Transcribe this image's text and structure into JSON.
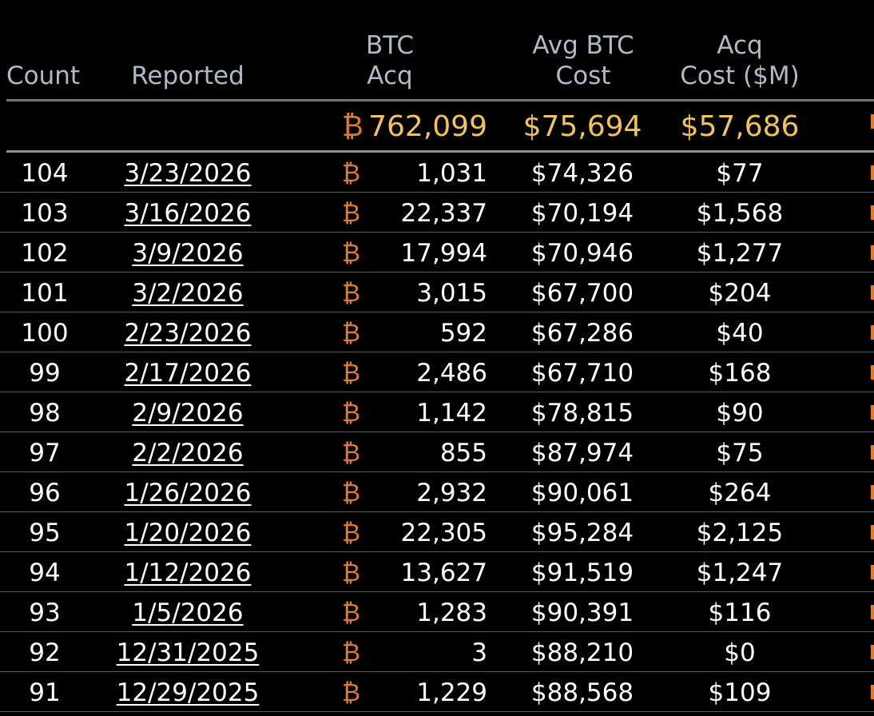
{
  "header": {
    "count": "Count",
    "reported": "Reported",
    "btc_acq_line1": "BTC",
    "btc_acq_line2": "Acq",
    "avg_cost_line1": "Avg BTC",
    "avg_cost_line2": "Cost",
    "acq_cost_line1": "Acq",
    "acq_cost_line2": "Cost ($M)"
  },
  "btc_symbol": "₿",
  "summary": {
    "btc_acq": "762,099",
    "avg_cost": "$75,694",
    "acq_cost": "$57,686"
  },
  "rows": [
    {
      "count": "104",
      "reported": "3/23/2026",
      "btc": "1,031",
      "avg": "$74,326",
      "acq": "$77"
    },
    {
      "count": "103",
      "reported": "3/16/2026",
      "btc": "22,337",
      "avg": "$70,194",
      "acq": "$1,568"
    },
    {
      "count": "102",
      "reported": "3/9/2026",
      "btc": "17,994",
      "avg": "$70,946",
      "acq": "$1,277"
    },
    {
      "count": "101",
      "reported": "3/2/2026",
      "btc": "3,015",
      "avg": "$67,700",
      "acq": "$204"
    },
    {
      "count": "100",
      "reported": "2/23/2026",
      "btc": "592",
      "avg": "$67,286",
      "acq": "$40"
    },
    {
      "count": "99",
      "reported": "2/17/2026",
      "btc": "2,486",
      "avg": "$67,710",
      "acq": "$168"
    },
    {
      "count": "98",
      "reported": "2/9/2026",
      "btc": "1,142",
      "avg": "$78,815",
      "acq": "$90"
    },
    {
      "count": "97",
      "reported": "2/2/2026",
      "btc": "855",
      "avg": "$87,974",
      "acq": "$75"
    },
    {
      "count": "96",
      "reported": "1/26/2026",
      "btc": "2,932",
      "avg": "$90,061",
      "acq": "$264"
    },
    {
      "count": "95",
      "reported": "1/20/2026",
      "btc": "22,305",
      "avg": "$95,284",
      "acq": "$2,125"
    },
    {
      "count": "94",
      "reported": "1/12/2026",
      "btc": "13,627",
      "avg": "$91,519",
      "acq": "$1,247"
    },
    {
      "count": "93",
      "reported": "1/5/2026",
      "btc": "1,283",
      "avg": "$90,391",
      "acq": "$116"
    },
    {
      "count": "92",
      "reported": "12/31/2025",
      "btc": "3",
      "avg": "$88,210",
      "acq": "$0"
    },
    {
      "count": "91",
      "reported": "12/29/2025",
      "btc": "1,229",
      "avg": "$88,568",
      "acq": "$109"
    }
  ],
  "colors": {
    "background": "#000000",
    "header_text": "#aebac6",
    "summary_text": "#f3c35b",
    "btc_symbol": "#e07a2e"
  }
}
